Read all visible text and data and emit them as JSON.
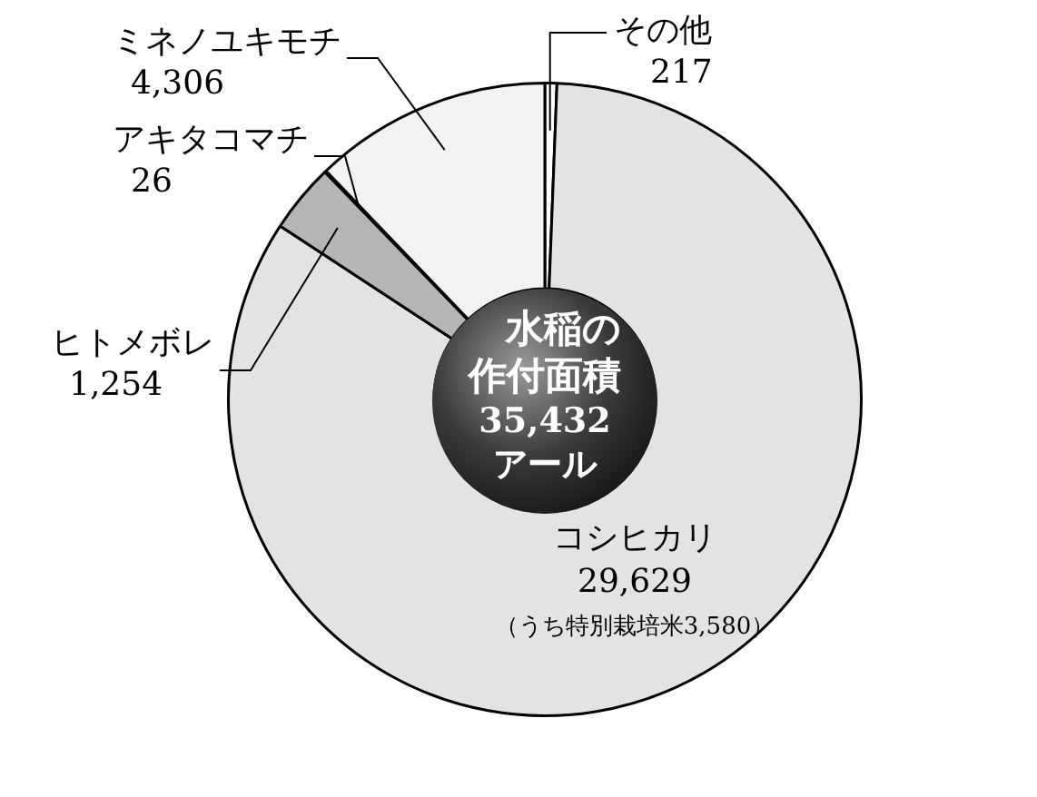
{
  "chart_data": {
    "type": "donut",
    "title": "水稲の作付面積",
    "subtitle": "35,432\nアール",
    "categories": [
      "その他",
      "コシヒカリ",
      "ヒトメボレ",
      "アキタコマチ",
      "ミネノユキモチ"
    ],
    "values": [
      217,
      29629,
      1254,
      26,
      4306
    ],
    "value_labels": [
      "217",
      "29,629",
      "1,254",
      "26",
      "4,306"
    ],
    "colors": [
      "#ffffff",
      "#e3e3e3",
      "#b5b5b5",
      "#7a7a7a",
      "#f2f2f2"
    ],
    "annotations": [
      {
        "text": "（うち特別栽培米3,580）",
        "x": "コシヒカリ"
      }
    ],
    "legend": false
  }
}
